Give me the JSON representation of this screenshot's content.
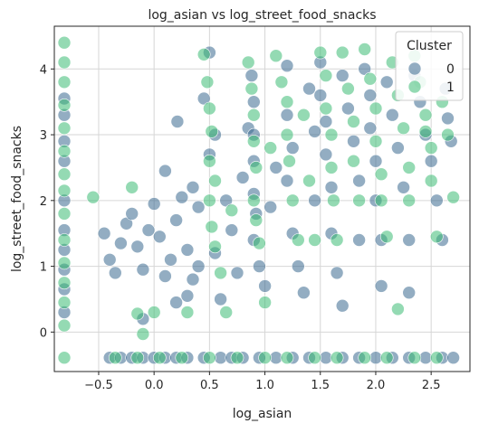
{
  "chart_data": {
    "type": "scatter",
    "title": "log_asian vs log_street_food_snacks",
    "xlabel": "log_asian",
    "ylabel": "log_street_food_snacks",
    "xlim": [
      -0.9,
      2.85
    ],
    "ylim": [
      -0.6,
      4.65
    ],
    "xticks": [
      -0.5,
      0.0,
      0.5,
      1.0,
      1.5,
      2.0,
      2.5
    ],
    "xtick_labels": [
      "−0.5",
      "0.0",
      "0.5",
      "1.0",
      "1.5",
      "2.0",
      "2.5"
    ],
    "yticks": [
      0,
      1,
      2,
      3,
      4
    ],
    "ytick_labels": [
      "0",
      "1",
      "2",
      "3",
      "4"
    ],
    "grid": true,
    "legend": {
      "title": "Cluster",
      "placement": "top-right",
      "entries": [
        {
          "label": "0",
          "color": "#3b6a8f"
        },
        {
          "label": "1",
          "color": "#3dbb74"
        }
      ]
    },
    "series": [
      {
        "name": "0",
        "color": "#3b6a8f",
        "points": [
          [
            -0.81,
            3.55
          ],
          [
            -0.81,
            3.3
          ],
          [
            -0.81,
            2.9
          ],
          [
            -0.81,
            2.6
          ],
          [
            -0.81,
            2.0
          ],
          [
            -0.81,
            1.55
          ],
          [
            -0.81,
            1.25
          ],
          [
            -0.81,
            0.95
          ],
          [
            -0.81,
            0.65
          ],
          [
            -0.81,
            0.3
          ],
          [
            -0.4,
            -0.39
          ],
          [
            -0.3,
            -0.39
          ],
          [
            -0.2,
            -0.39
          ],
          [
            -0.1,
            -0.39
          ],
          [
            0.0,
            -0.39
          ],
          [
            0.1,
            -0.39
          ],
          [
            0.2,
            -0.39
          ],
          [
            0.3,
            -0.39
          ],
          [
            0.45,
            -0.39
          ],
          [
            0.6,
            -0.39
          ],
          [
            0.7,
            -0.39
          ],
          [
            0.8,
            -0.39
          ],
          [
            0.95,
            -0.39
          ],
          [
            1.1,
            -0.39
          ],
          [
            1.25,
            -0.39
          ],
          [
            1.4,
            -0.39
          ],
          [
            1.55,
            -0.39
          ],
          [
            1.7,
            -0.39
          ],
          [
            1.85,
            -0.39
          ],
          [
            2.0,
            -0.39
          ],
          [
            2.15,
            -0.39
          ],
          [
            2.3,
            -0.39
          ],
          [
            2.45,
            -0.39
          ],
          [
            2.6,
            -0.39
          ],
          [
            2.7,
            -0.39
          ],
          [
            -0.45,
            1.5
          ],
          [
            -0.4,
            1.1
          ],
          [
            -0.35,
            0.9
          ],
          [
            -0.3,
            1.35
          ],
          [
            -0.25,
            1.65
          ],
          [
            -0.2,
            1.8
          ],
          [
            -0.15,
            1.3
          ],
          [
            -0.1,
            0.95
          ],
          [
            -0.05,
            1.55
          ],
          [
            0.0,
            1.95
          ],
          [
            0.05,
            1.45
          ],
          [
            0.1,
            2.45
          ],
          [
            0.15,
            1.1
          ],
          [
            0.2,
            1.7
          ],
          [
            0.25,
            2.05
          ],
          [
            0.3,
            1.25
          ],
          [
            0.35,
            0.8
          ],
          [
            0.4,
            1.9
          ],
          [
            -0.1,
            0.2
          ],
          [
            0.1,
            0.85
          ],
          [
            0.2,
            0.45
          ],
          [
            0.3,
            0.55
          ],
          [
            0.4,
            1.0
          ],
          [
            0.21,
            3.2
          ],
          [
            0.35,
            2.2
          ],
          [
            0.45,
            3.55
          ],
          [
            0.5,
            4.25
          ],
          [
            0.55,
            3.0
          ],
          [
            0.5,
            2.7
          ],
          [
            0.55,
            1.2
          ],
          [
            0.6,
            0.5
          ],
          [
            0.65,
            2.0
          ],
          [
            0.7,
            1.55
          ],
          [
            0.75,
            0.9
          ],
          [
            0.8,
            2.35
          ],
          [
            0.85,
            3.1
          ],
          [
            0.88,
            3.9
          ],
          [
            0.9,
            3.5
          ],
          [
            0.9,
            3.0
          ],
          [
            0.9,
            2.6
          ],
          [
            0.9,
            2.1
          ],
          [
            0.92,
            1.8
          ],
          [
            0.9,
            1.4
          ],
          [
            0.95,
            1.0
          ],
          [
            1.0,
            0.7
          ],
          [
            1.05,
            1.9
          ],
          [
            1.1,
            2.5
          ],
          [
            1.2,
            4.05
          ],
          [
            1.2,
            3.3
          ],
          [
            1.25,
            2.8
          ],
          [
            1.2,
            2.3
          ],
          [
            1.25,
            1.5
          ],
          [
            1.3,
            1.0
          ],
          [
            1.35,
            0.6
          ],
          [
            1.4,
            3.7
          ],
          [
            1.45,
            3.05
          ],
          [
            1.45,
            2.0
          ],
          [
            1.5,
            4.1
          ],
          [
            1.5,
            3.6
          ],
          [
            1.55,
            3.2
          ],
          [
            1.55,
            2.7
          ],
          [
            1.6,
            2.2
          ],
          [
            1.6,
            1.5
          ],
          [
            1.65,
            0.9
          ],
          [
            1.7,
            0.4
          ],
          [
            1.7,
            3.9
          ],
          [
            1.75,
            3.4
          ],
          [
            1.8,
            2.9
          ],
          [
            1.85,
            2.3
          ],
          [
            1.85,
            1.4
          ],
          [
            1.9,
            4.0
          ],
          [
            1.95,
            3.6
          ],
          [
            1.95,
            3.1
          ],
          [
            2.0,
            2.6
          ],
          [
            2.0,
            2.0
          ],
          [
            2.05,
            1.4
          ],
          [
            2.05,
            0.7
          ],
          [
            2.1,
            3.8
          ],
          [
            2.15,
            3.3
          ],
          [
            2.2,
            2.8
          ],
          [
            2.25,
            2.2
          ],
          [
            2.3,
            1.4
          ],
          [
            2.35,
            3.9
          ],
          [
            2.4,
            3.5
          ],
          [
            2.45,
            3.0
          ],
          [
            2.5,
            2.6
          ],
          [
            2.55,
            2.0
          ],
          [
            2.6,
            1.4
          ],
          [
            2.63,
            3.7
          ],
          [
            2.65,
            3.25
          ],
          [
            2.68,
            2.9
          ],
          [
            2.3,
            0.6
          ]
        ]
      },
      {
        "name": "1",
        "color": "#3dbb74",
        "points": [
          [
            -0.81,
            4.4
          ],
          [
            -0.81,
            4.1
          ],
          [
            -0.81,
            3.8
          ],
          [
            -0.81,
            3.45
          ],
          [
            -0.81,
            3.1
          ],
          [
            -0.81,
            2.75
          ],
          [
            -0.81,
            2.4
          ],
          [
            -0.81,
            2.15
          ],
          [
            -0.81,
            1.8
          ],
          [
            -0.81,
            1.4
          ],
          [
            -0.81,
            1.05
          ],
          [
            -0.81,
            0.75
          ],
          [
            -0.81,
            0.45
          ],
          [
            -0.81,
            0.1
          ],
          [
            -0.81,
            -0.39
          ],
          [
            -0.35,
            -0.39
          ],
          [
            -0.15,
            -0.39
          ],
          [
            0.05,
            -0.39
          ],
          [
            0.25,
            -0.39
          ],
          [
            0.5,
            -0.39
          ],
          [
            0.75,
            -0.39
          ],
          [
            1.0,
            -0.39
          ],
          [
            1.2,
            -0.39
          ],
          [
            1.45,
            -0.39
          ],
          [
            1.65,
            -0.39
          ],
          [
            1.9,
            -0.39
          ],
          [
            2.1,
            -0.39
          ],
          [
            2.35,
            -0.39
          ],
          [
            2.55,
            -0.39
          ],
          [
            -0.55,
            2.05
          ],
          [
            -0.2,
            2.2
          ],
          [
            -0.15,
            0.28
          ],
          [
            -0.1,
            -0.03
          ],
          [
            0.0,
            0.3
          ],
          [
            0.3,
            0.3
          ],
          [
            0.45,
            4.22
          ],
          [
            0.48,
            3.8
          ],
          [
            0.5,
            3.4
          ],
          [
            0.52,
            3.05
          ],
          [
            0.5,
            2.6
          ],
          [
            0.55,
            2.3
          ],
          [
            0.5,
            2.0
          ],
          [
            0.52,
            1.6
          ],
          [
            0.55,
            1.3
          ],
          [
            0.6,
            0.9
          ],
          [
            0.65,
            0.3
          ],
          [
            0.7,
            1.85
          ],
          [
            0.85,
            4.1
          ],
          [
            0.88,
            3.7
          ],
          [
            0.9,
            3.3
          ],
          [
            0.9,
            2.9
          ],
          [
            0.92,
            2.5
          ],
          [
            0.9,
            2.0
          ],
          [
            0.92,
            1.7
          ],
          [
            0.95,
            1.35
          ],
          [
            1.0,
            0.45
          ],
          [
            1.05,
            2.8
          ],
          [
            1.1,
            4.2
          ],
          [
            1.15,
            3.8
          ],
          [
            1.2,
            3.5
          ],
          [
            1.2,
            3.0
          ],
          [
            1.22,
            2.6
          ],
          [
            1.25,
            2.0
          ],
          [
            1.3,
            1.4
          ],
          [
            1.35,
            3.3
          ],
          [
            1.4,
            2.3
          ],
          [
            1.45,
            1.4
          ],
          [
            1.5,
            4.25
          ],
          [
            1.55,
            3.9
          ],
          [
            1.55,
            3.4
          ],
          [
            1.6,
            3.0
          ],
          [
            1.6,
            2.5
          ],
          [
            1.62,
            2.0
          ],
          [
            1.65,
            1.4
          ],
          [
            1.7,
            4.25
          ],
          [
            1.75,
            3.7
          ],
          [
            1.8,
            3.2
          ],
          [
            1.8,
            2.6
          ],
          [
            1.85,
            2.0
          ],
          [
            1.9,
            4.3
          ],
          [
            1.95,
            3.85
          ],
          [
            2.0,
            3.4
          ],
          [
            2.0,
            2.9
          ],
          [
            2.05,
            2.4
          ],
          [
            2.05,
            2.0
          ],
          [
            2.1,
            1.45
          ],
          [
            2.15,
            4.1
          ],
          [
            2.2,
            3.6
          ],
          [
            2.25,
            3.1
          ],
          [
            2.3,
            2.5
          ],
          [
            2.3,
            2.0
          ],
          [
            2.35,
            4.2
          ],
          [
            2.4,
            3.8
          ],
          [
            2.45,
            3.3
          ],
          [
            2.5,
            2.8
          ],
          [
            2.5,
            2.3
          ],
          [
            2.55,
            1.45
          ],
          [
            2.6,
            3.5
          ],
          [
            2.65,
            3.0
          ],
          [
            2.7,
            2.05
          ],
          [
            2.2,
            0.35
          ],
          [
            2.45,
            3.05
          ]
        ]
      }
    ]
  }
}
